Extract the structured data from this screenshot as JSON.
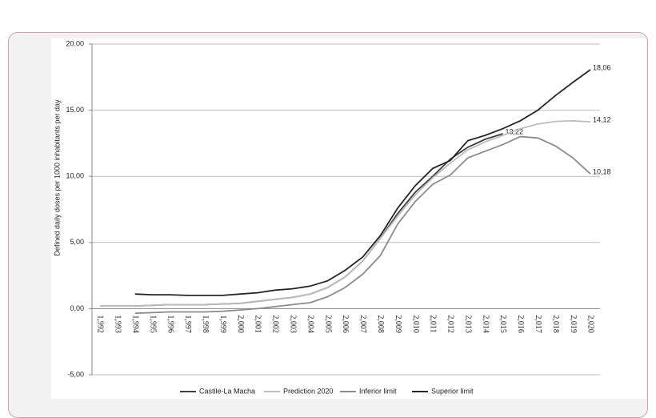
{
  "chart_data": {
    "type": "line",
    "y_label": "Defined daily doses per 1000 inhabitants per day",
    "categories": [
      "1,992",
      "1,993",
      "1,994",
      "1,995",
      "1,996",
      "1,997",
      "1,998",
      "1,999",
      "2,000",
      "2,001",
      "2,002",
      "2,003",
      "2,004",
      "2,005",
      "2,006",
      "2,007",
      "2,008",
      "2,009",
      "2,010",
      "2,011",
      "2,012",
      "2,013",
      "2,014",
      "2,015",
      "2,016",
      "2,017",
      "2,018",
      "2,019",
      "2,020"
    ],
    "ylim": [
      -5,
      20
    ],
    "yticks": [
      {
        "value": -5,
        "label": "-5,00"
      },
      {
        "value": 0,
        "label": "0,00"
      },
      {
        "value": 5,
        "label": "5,00"
      },
      {
        "value": 10,
        "label": "10,00"
      },
      {
        "value": 15,
        "label": "15.00"
      },
      {
        "value": 20,
        "label": "20.00"
      }
    ],
    "grid": true,
    "legend": "bottom",
    "series": [
      {
        "name": "Castile-La Macha",
        "color": "#404040",
        "values": [
          0.2,
          0.2,
          0.2,
          0.25,
          0.3,
          0.3,
          0.3,
          0.35,
          0.4,
          0.55,
          0.7,
          0.85,
          1.1,
          1.6,
          2.4,
          3.6,
          5.3,
          7.2,
          8.8,
          10.0,
          11.3,
          12.2,
          12.8,
          13.22,
          null,
          null,
          null,
          null,
          null
        ],
        "value_labels": [
          null,
          null,
          null,
          null,
          null,
          null,
          null,
          null,
          null,
          null,
          null,
          null,
          null,
          null,
          null,
          null,
          null,
          null,
          null,
          null,
          null,
          null,
          null,
          "13,22",
          null,
          null,
          null,
          null,
          null
        ]
      },
      {
        "name": "Prediction 2020",
        "color": "#bdbdbd",
        "values": [
          0.2,
          0.2,
          0.2,
          0.25,
          0.3,
          0.3,
          0.3,
          0.35,
          0.4,
          0.55,
          0.7,
          0.85,
          1.1,
          1.6,
          2.4,
          3.6,
          5.3,
          7.0,
          8.6,
          9.9,
          11.0,
          12.0,
          12.6,
          13.1,
          13.6,
          13.95,
          14.15,
          14.2,
          14.12
        ],
        "value_labels": [
          null,
          null,
          null,
          null,
          null,
          null,
          null,
          null,
          null,
          null,
          null,
          null,
          null,
          null,
          null,
          null,
          null,
          null,
          null,
          null,
          null,
          null,
          null,
          null,
          null,
          null,
          null,
          null,
          "14,12"
        ]
      },
      {
        "name": "Inferior limit",
        "color": "#8c8c8c",
        "values": [
          null,
          null,
          -0.35,
          -0.3,
          -0.25,
          -0.25,
          -0.25,
          -0.2,
          -0.1,
          0.0,
          0.15,
          0.3,
          0.45,
          0.9,
          1.6,
          2.6,
          4.0,
          6.4,
          8.1,
          9.4,
          10.1,
          11.4,
          11.9,
          12.4,
          13.0,
          12.9,
          12.3,
          11.4,
          10.18
        ],
        "value_labels": [
          null,
          null,
          null,
          null,
          null,
          null,
          null,
          null,
          null,
          null,
          null,
          null,
          null,
          null,
          null,
          null,
          null,
          null,
          null,
          null,
          null,
          null,
          null,
          null,
          null,
          null,
          null,
          null,
          "10,18"
        ]
      },
      {
        "name": "Superior limit",
        "color": "#262626",
        "values": [
          null,
          null,
          1.1,
          1.05,
          1.05,
          1.0,
          1.0,
          1.0,
          1.1,
          1.2,
          1.4,
          1.5,
          1.7,
          2.1,
          2.9,
          3.9,
          5.5,
          7.6,
          9.3,
          10.6,
          11.2,
          12.7,
          13.1,
          13.6,
          14.2,
          15.0,
          16.1,
          17.1,
          18.06
        ],
        "value_labels": [
          null,
          null,
          null,
          null,
          null,
          null,
          null,
          null,
          null,
          null,
          null,
          null,
          null,
          null,
          null,
          null,
          null,
          null,
          null,
          null,
          null,
          null,
          null,
          null,
          null,
          null,
          null,
          null,
          "18,06"
        ]
      }
    ]
  }
}
